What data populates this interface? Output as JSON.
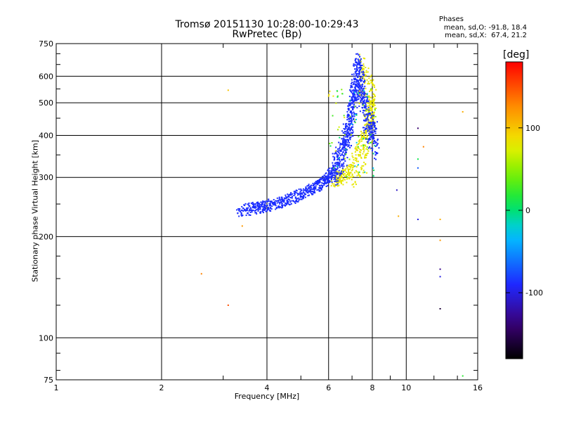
{
  "header": {
    "title": "Tromsø 20151130 10:28:00-10:29:43",
    "subtitle": "RwPretec (Bp)"
  },
  "phases_box": {
    "heading": "Phases",
    "o_stats": "mean, sd,O: -91.8, 18.4",
    "x_stats": "mean, sd,X:  67.4, 21.2"
  },
  "colorbar": {
    "label": "[deg]",
    "ticks": [
      "100",
      "0",
      "-100"
    ],
    "tick_values": [
      100,
      0,
      -100
    ],
    "range": [
      -180,
      180
    ],
    "colormap": "rainbow"
  },
  "chart_data": {
    "type": "scatter",
    "xlabel": "Frequency [MHz]",
    "ylabel": "Stationary phase Virtual Height [km]",
    "xscale": "log",
    "yscale": "log",
    "xlim": [
      1,
      16
    ],
    "ylim": [
      75,
      750
    ],
    "xticks": [
      1,
      2,
      4,
      6,
      8,
      10,
      16
    ],
    "xticklabels": [
      "1",
      "2",
      "4",
      "6",
      "8",
      "10",
      "16"
    ],
    "yticks": [
      75,
      100,
      200,
      300,
      400,
      500,
      600,
      750
    ],
    "yticklabels": [
      "75",
      "100",
      "200",
      "300",
      "400",
      "500",
      "600",
      "750"
    ],
    "grid": true,
    "colors": {
      "o_mode": "#1a2cff",
      "x_mode": "#e6e600"
    },
    "series": [
      {
        "mode": "O",
        "color": "#1a2cff",
        "trace": [
          [
            3.3,
            238
          ],
          [
            3.6,
            242
          ],
          [
            3.9,
            246
          ],
          [
            4.2,
            250
          ],
          [
            4.5,
            255
          ],
          [
            4.8,
            262
          ],
          [
            5.1,
            270
          ],
          [
            5.4,
            278
          ],
          [
            5.7,
            288
          ],
          [
            6.0,
            300
          ],
          [
            6.2,
            315
          ],
          [
            6.4,
            335
          ],
          [
            6.6,
            360
          ],
          [
            6.75,
            390
          ],
          [
            6.9,
            430
          ],
          [
            7.0,
            480
          ],
          [
            7.1,
            530
          ],
          [
            7.2,
            580
          ],
          [
            7.3,
            630
          ],
          [
            7.45,
            560
          ],
          [
            7.6,
            490
          ],
          [
            7.8,
            440
          ],
          [
            8.0,
            410
          ],
          [
            8.3,
            380
          ]
        ],
        "scatter_height_factor": 0.04
      },
      {
        "mode": "X",
        "color": "#e6e600",
        "trace": [
          [
            6.2,
            295
          ],
          [
            6.5,
            300
          ],
          [
            6.8,
            310
          ],
          [
            7.1,
            325
          ],
          [
            7.4,
            350
          ],
          [
            7.6,
            380
          ],
          [
            7.8,
            420
          ],
          [
            7.95,
            460
          ],
          [
            8.05,
            500
          ],
          [
            7.6,
            560
          ],
          [
            7.4,
            620
          ]
        ],
        "scatter_height_factor": 0.05
      }
    ],
    "isolated_points": [
      {
        "x": 3.1,
        "y": 545,
        "phase": 100
      },
      {
        "x": 3.4,
        "y": 215,
        "phase": 120
      },
      {
        "x": 2.6,
        "y": 155,
        "phase": 130
      },
      {
        "x": 3.1,
        "y": 125,
        "phase": 150
      },
      {
        "x": 9.4,
        "y": 275,
        "phase": -110
      },
      {
        "x": 9.5,
        "y": 230,
        "phase": 110
      },
      {
        "x": 10.8,
        "y": 420,
        "phase": -140
      },
      {
        "x": 11.2,
        "y": 370,
        "phase": 130
      },
      {
        "x": 10.8,
        "y": 340,
        "phase": 10
      },
      {
        "x": 10.8,
        "y": 320,
        "phase": -70
      },
      {
        "x": 10.8,
        "y": 225,
        "phase": -100
      },
      {
        "x": 12.5,
        "y": 225,
        "phase": 110
      },
      {
        "x": 12.5,
        "y": 195,
        "phase": 120
      },
      {
        "x": 12.5,
        "y": 160,
        "phase": -130
      },
      {
        "x": 12.5,
        "y": 152,
        "phase": -100
      },
      {
        "x": 12.5,
        "y": 122,
        "phase": -160
      },
      {
        "x": 14.5,
        "y": 470,
        "phase": 110
      },
      {
        "x": 14.5,
        "y": 77,
        "phase": 20
      }
    ]
  }
}
